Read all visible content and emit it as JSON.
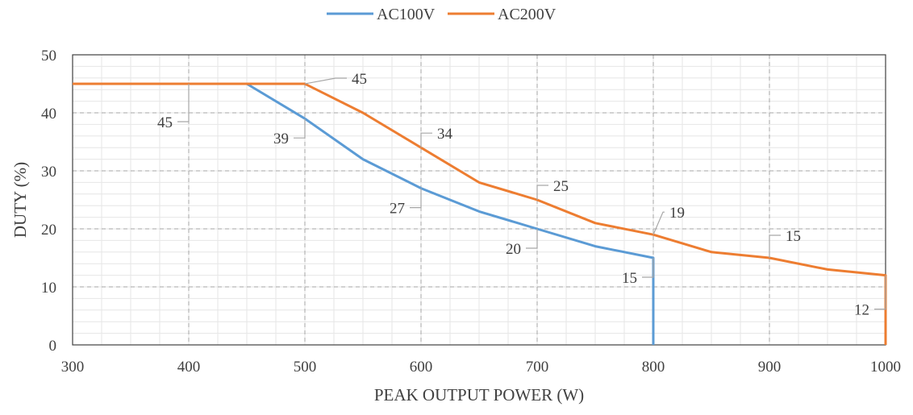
{
  "chart_data": {
    "type": "line",
    "xlabel": "PEAK OUTPUT POWER (W)",
    "ylabel": "DUTY (%)",
    "xlim": [
      300,
      1000
    ],
    "ylim": [
      0,
      50
    ],
    "x_ticks": [
      300,
      400,
      500,
      600,
      700,
      800,
      900,
      1000
    ],
    "y_ticks": [
      0,
      10,
      20,
      30,
      40,
      50
    ],
    "x_minor_step": 25,
    "y_minor_step": 2,
    "grid": true,
    "legend_position": "top-center",
    "series": [
      {
        "name": "AC100V",
        "color": "#5b9bd5",
        "points": [
          [
            300,
            45
          ],
          [
            450,
            45
          ],
          [
            500,
            39
          ],
          [
            550,
            32
          ],
          [
            600,
            27
          ],
          [
            650,
            23
          ],
          [
            700,
            20
          ],
          [
            750,
            17
          ],
          [
            800,
            15
          ],
          [
            800,
            0
          ]
        ],
        "labels": [
          {
            "x": 500,
            "y": 39,
            "text": "39",
            "dir": "left"
          },
          {
            "x": 600,
            "y": 27,
            "text": "27",
            "dir": "left"
          },
          {
            "x": 700,
            "y": 20,
            "text": "20",
            "dir": "left"
          },
          {
            "x": 800,
            "y": 15,
            "text": "15",
            "dir": "left"
          }
        ]
      },
      {
        "name": "AC200V",
        "color": "#ed7d31",
        "points": [
          [
            300,
            45
          ],
          [
            500,
            45
          ],
          [
            550,
            40
          ],
          [
            600,
            34
          ],
          [
            650,
            28
          ],
          [
            700,
            25
          ],
          [
            750,
            21
          ],
          [
            800,
            19
          ],
          [
            850,
            16
          ],
          [
            900,
            15
          ],
          [
            950,
            13
          ],
          [
            1000,
            12
          ],
          [
            1000,
            0
          ]
        ],
        "labels": [
          {
            "x": 400,
            "y": 45,
            "text": "45",
            "dir": "left"
          },
          {
            "x": 500,
            "y": 45,
            "text": "45",
            "dir": "right"
          },
          {
            "x": 600,
            "y": 34,
            "text": "34",
            "dir": "right"
          },
          {
            "x": 700,
            "y": 25,
            "text": "25",
            "dir": "right"
          },
          {
            "x": 800,
            "y": 19,
            "text": "19",
            "dir": "right"
          },
          {
            "x": 900,
            "y": 15,
            "text": "15",
            "dir": "right"
          },
          {
            "x": 1000,
            "y": 12,
            "text": "12",
            "dir": "left"
          }
        ]
      }
    ]
  }
}
